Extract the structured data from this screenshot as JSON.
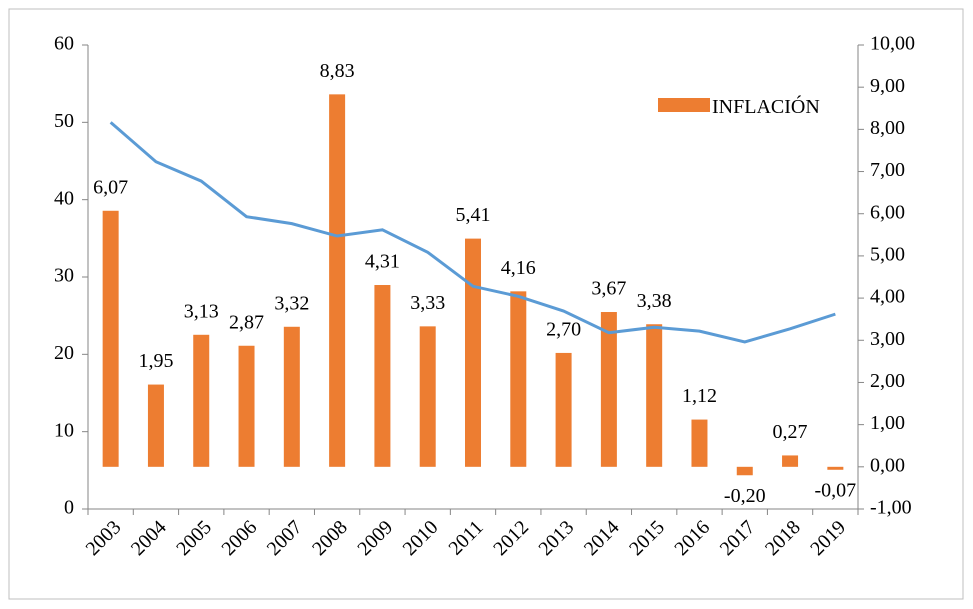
{
  "chart_data": {
    "type": "bar",
    "categories": [
      "2003",
      "2004",
      "2005",
      "2006",
      "2007",
      "2008",
      "2009",
      "2010",
      "2011",
      "2012",
      "2013",
      "2014",
      "2015",
      "2016",
      "2017",
      "2018",
      "2019"
    ],
    "series": [
      {
        "name": "INFLACIÓN",
        "type": "bar",
        "axis": "y2",
        "color": "#ed7d31",
        "values": [
          6.07,
          1.95,
          3.13,
          2.87,
          3.32,
          8.83,
          4.31,
          3.33,
          5.41,
          4.16,
          2.7,
          3.67,
          3.38,
          1.12,
          -0.2,
          0.27,
          -0.07
        ],
        "value_labels": [
          "6,07",
          "1,95",
          "3,13",
          "2,87",
          "3,32",
          "8,83",
          "4,31",
          "3,33",
          "5,41",
          "4,16",
          "2,70",
          "3,67",
          "3,38",
          "1,12",
          "-0,20",
          "0,27",
          "-0,07"
        ]
      },
      {
        "type": "line",
        "color": "#5b9bd5",
        "values": [
          50.0,
          44.9,
          42.4,
          37.8,
          36.9,
          35.3,
          36.1,
          33.2,
          28.8,
          27.5,
          25.6,
          22.8,
          23.5,
          23.0,
          21.6,
          23.3,
          25.2
        ]
      }
    ],
    "ylim": [
      0,
      60
    ],
    "yticks": [
      0,
      10,
      20,
      30,
      40,
      50,
      60
    ],
    "y2lim": [
      -1,
      10
    ],
    "y2ticks": [
      {
        "value": -1,
        "label": "-1,00"
      },
      {
        "value": 0,
        "label": "0,00"
      },
      {
        "value": 1,
        "label": "1,00"
      },
      {
        "value": 2,
        "label": "2,00"
      },
      {
        "value": 3,
        "label": "3,00"
      },
      {
        "value": 4,
        "label": "4,00"
      },
      {
        "value": 5,
        "label": "5,00"
      },
      {
        "value": 6,
        "label": "6,00"
      },
      {
        "value": 7,
        "label": "7,00"
      },
      {
        "value": 8,
        "label": "8,00"
      },
      {
        "value": 9,
        "label": "9,00"
      },
      {
        "value": 10,
        "label": "10,00"
      }
    ],
    "legend": "top-right",
    "grid": false
  }
}
